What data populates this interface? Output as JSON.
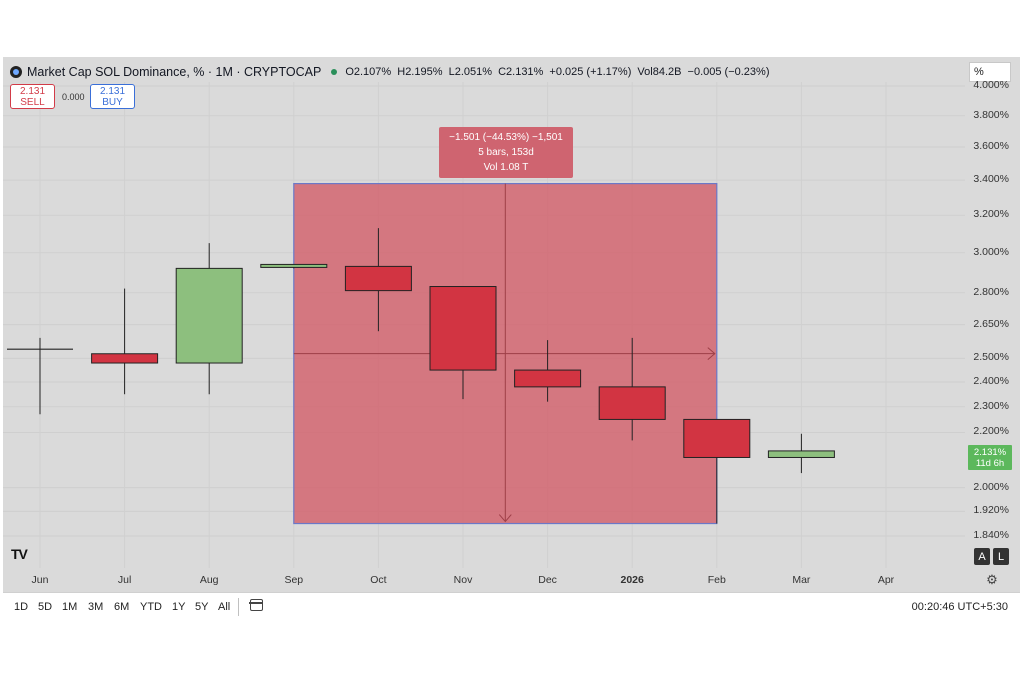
{
  "header": {
    "title": "Market Cap SOL Dominance, % · 1M · CRYPTOCAP",
    "open": "O2.107%",
    "high": "H2.195%",
    "low": "L2.051%",
    "close": "C2.131%",
    "change": "+0.025 (+1.17%)",
    "volume": "Vol84.2B",
    "vol_change": "−0.005 (−0.23%)"
  },
  "scale_button": "%",
  "trade": {
    "sell_price": "2.131",
    "sell_label": "SELL",
    "spread": "0.000",
    "buy_price": "2.131",
    "buy_label": "BUY"
  },
  "measure": {
    "line1": "−1.501 (−44.53%) −1,501",
    "line2": "5 bars, 153d",
    "line3": "Vol 1.08 T"
  },
  "price_tag": {
    "value": "2.131%",
    "countdown": "11d 6h"
  },
  "y_ticks": [
    "4.000%",
    "3.800%",
    "3.600%",
    "3.400%",
    "3.200%",
    "3.000%",
    "2.800%",
    "2.650%",
    "2.500%",
    "2.400%",
    "2.300%",
    "2.200%",
    "2.000%",
    "1.920%",
    "1.840%"
  ],
  "x_ticks": [
    "Jun",
    "Jul",
    "Aug",
    "Sep",
    "Oct",
    "Nov",
    "Dec",
    "2026",
    "Feb",
    "Mar",
    "Apr"
  ],
  "timeframes": [
    "1D",
    "5D",
    "1M",
    "3M",
    "6M",
    "YTD",
    "1Y",
    "5Y",
    "All"
  ],
  "clock": "00:20:46 UTC+5:30",
  "al_buttons": [
    "A",
    "L"
  ],
  "colors": {
    "up": "#8dbf7e",
    "down": "#d23442",
    "measure_fill": "#d2606b",
    "measure_border": "#6b78c8",
    "tag": "#5cb85c"
  },
  "chart_data": {
    "type": "candlestick",
    "title": "Market Cap SOL Dominance, % · 1M · CRYPTOCAP",
    "y_scale": "log",
    "candles": [
      {
        "x": "Jun",
        "open": 2.54,
        "high": 2.59,
        "low": 2.27,
        "close": 2.54
      },
      {
        "x": "Jul",
        "open": 2.52,
        "high": 2.82,
        "low": 2.35,
        "close": 2.48
      },
      {
        "x": "Aug",
        "open": 2.48,
        "high": 3.05,
        "low": 2.35,
        "close": 2.92
      },
      {
        "x": "Sep",
        "open": 2.93,
        "high": 2.94,
        "low": 2.92,
        "close": 2.94
      },
      {
        "x": "Oct",
        "open": 2.93,
        "high": 3.13,
        "low": 2.62,
        "close": 2.81
      },
      {
        "x": "Nov",
        "open": 2.83,
        "high": 2.83,
        "low": 2.33,
        "close": 2.45
      },
      {
        "x": "Dec",
        "open": 2.45,
        "high": 2.58,
        "low": 2.32,
        "close": 2.38
      },
      {
        "x": "2026",
        "open": 2.38,
        "high": 2.59,
        "low": 2.17,
        "close": 2.25
      },
      {
        "x": "Feb",
        "open": 2.25,
        "high": 2.25,
        "low": 1.88,
        "close": 2.107
      },
      {
        "x": "Mar",
        "open": 2.107,
        "high": 2.195,
        "low": 2.051,
        "close": 2.131
      }
    ],
    "measure_range": {
      "from": "Sep",
      "to": "Feb",
      "high": 3.38,
      "low": 1.88
    },
    "last_price": 2.131
  }
}
